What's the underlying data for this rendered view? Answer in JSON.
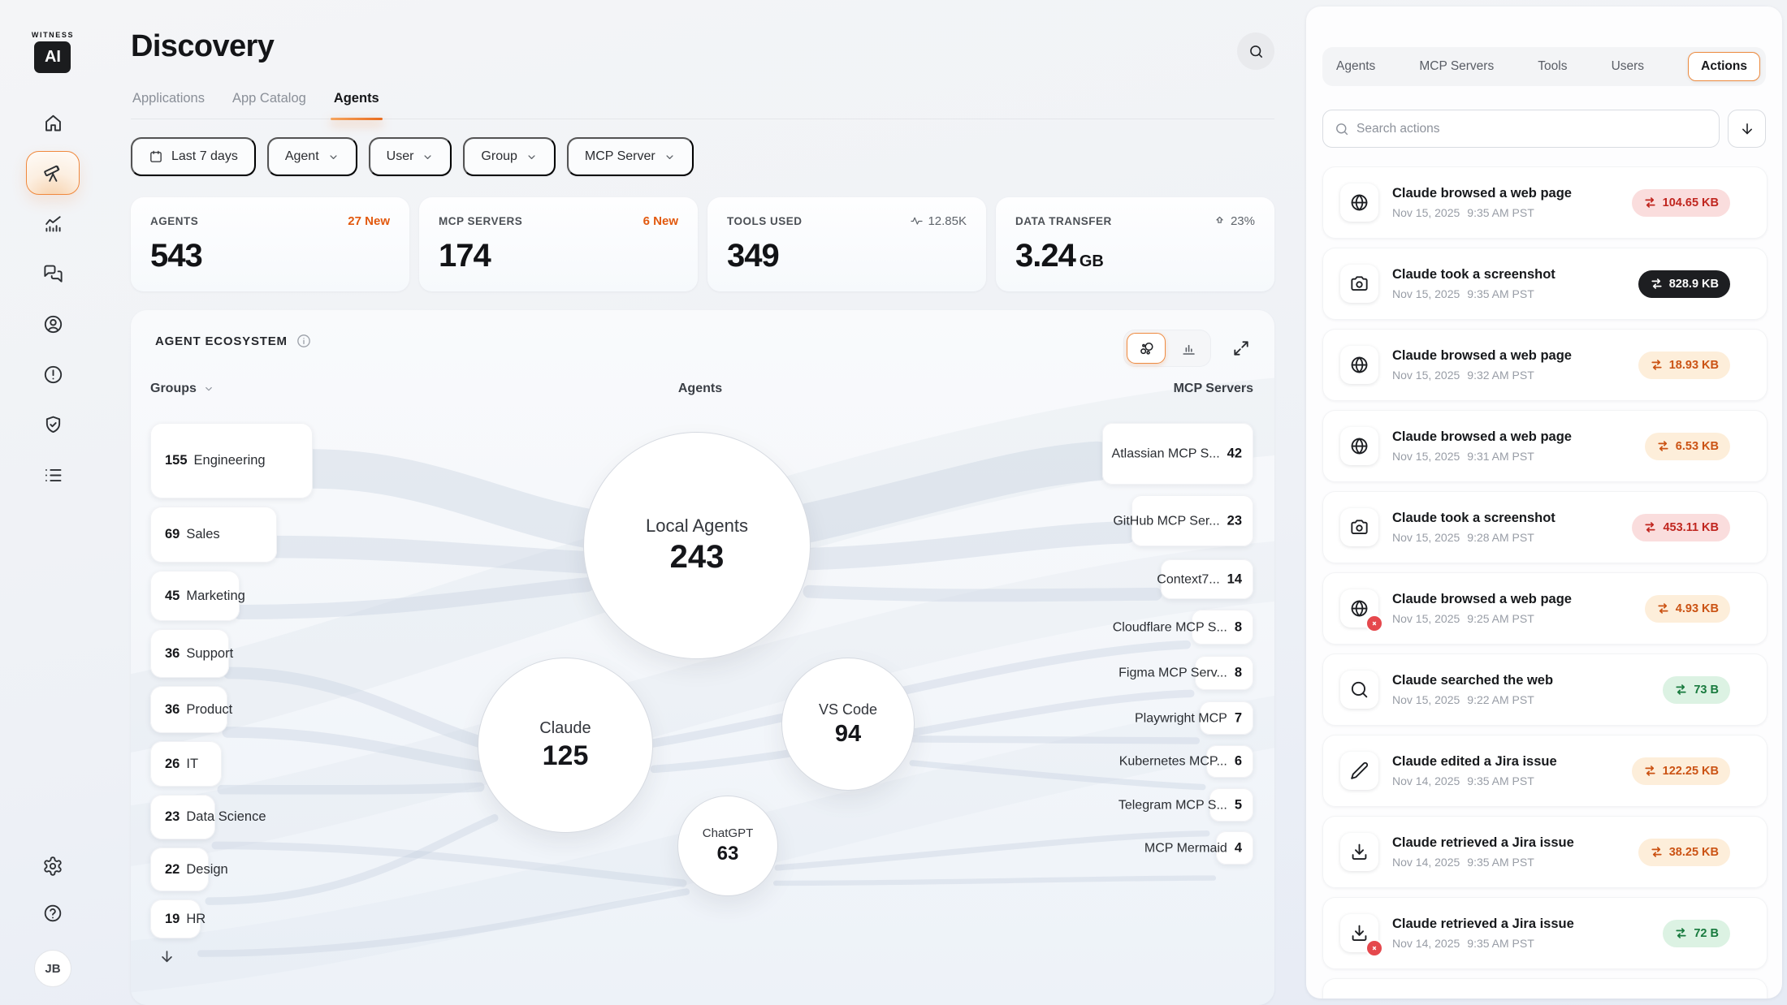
{
  "sidebar": {
    "logo": {
      "word": "WITNESS",
      "mark": "AI"
    },
    "nav": [
      {
        "name": "home",
        "icon": "home-icon",
        "active": false
      },
      {
        "name": "discovery",
        "icon": "telescope-icon",
        "active": true
      },
      {
        "name": "analytics",
        "icon": "chart-trend-icon",
        "active": false
      },
      {
        "name": "conversations",
        "icon": "chat-bubbles-icon",
        "active": false
      },
      {
        "name": "users",
        "icon": "user-circle-icon",
        "active": false
      },
      {
        "name": "alerts",
        "icon": "alert-circle-icon",
        "active": false
      },
      {
        "name": "security",
        "icon": "shield-check-icon",
        "active": false
      },
      {
        "name": "logs",
        "icon": "list-icon",
        "active": false
      }
    ],
    "footer": [
      {
        "name": "settings",
        "icon": "gear-icon"
      },
      {
        "name": "help",
        "icon": "help-circle-icon"
      }
    ],
    "avatar": "JB"
  },
  "header": {
    "title": "Discovery",
    "tabs": [
      {
        "label": "Applications",
        "active": false
      },
      {
        "label": "App Catalog",
        "active": false
      },
      {
        "label": "Agents",
        "active": true
      }
    ]
  },
  "filters": {
    "date_range": "Last 7 days",
    "dropdowns": [
      "Agent",
      "User",
      "Group",
      "MCP Server"
    ]
  },
  "stats": [
    {
      "label": "AGENTS",
      "value": "543",
      "meta": "27 New",
      "meta_style": "orange",
      "meta_icon": ""
    },
    {
      "label": "MCP SERVERS",
      "value": "174",
      "meta": "6 New",
      "meta_style": "orange",
      "meta_icon": ""
    },
    {
      "label": "TOOLS USED",
      "value": "349",
      "meta": "12.85K",
      "meta_style": "gray",
      "meta_icon": "pulse"
    },
    {
      "label": "DATA TRANSFER",
      "value": "3.24",
      "unit": "GB",
      "meta": "23%",
      "meta_style": "gray",
      "meta_icon": "arrow-up"
    }
  ],
  "ecosystem": {
    "title": "AGENT ECOSYSTEM",
    "columns": {
      "left": "Groups",
      "center": "Agents",
      "right": "MCP Servers"
    },
    "groups": [
      {
        "count": "155",
        "label": "Engineering"
      },
      {
        "count": "69",
        "label": "Sales"
      },
      {
        "count": "45",
        "label": "Marketing"
      },
      {
        "count": "36",
        "label": "Support"
      },
      {
        "count": "36",
        "label": "Product"
      },
      {
        "count": "26",
        "label": "IT"
      },
      {
        "count": "23",
        "label": "Data Science"
      },
      {
        "count": "22",
        "label": "Design"
      },
      {
        "count": "19",
        "label": "HR"
      }
    ],
    "agents": [
      {
        "label": "Local Agents",
        "value": "243"
      },
      {
        "label": "Claude",
        "value": "125"
      },
      {
        "label": "VS Code",
        "value": "94"
      },
      {
        "label": "ChatGPT",
        "value": "63"
      }
    ],
    "mcp_servers": [
      {
        "label": "Atlassian MCP S...",
        "value": "42"
      },
      {
        "label": "GitHub MCP Ser...",
        "value": "23"
      },
      {
        "label": "Context7...",
        "value": "14"
      },
      {
        "label": "Cloudflare MCP S...",
        "value": "8"
      },
      {
        "label": "Figma MCP Serv...",
        "value": "8"
      },
      {
        "label": "Playwright MCP",
        "value": "7"
      },
      {
        "label": "Kubernetes MCP...",
        "value": "6"
      },
      {
        "label": "Telegram MCP S...",
        "value": "5"
      },
      {
        "label": "MCP Mermaid",
        "value": "4"
      }
    ],
    "colors": {
      "ribbon": "#c9d3e2",
      "accent": "#ee8a40"
    }
  },
  "panel": {
    "tabs": [
      {
        "label": "Agents",
        "active": false
      },
      {
        "label": "MCP Servers",
        "active": false
      },
      {
        "label": "Tools",
        "active": false
      },
      {
        "label": "Users",
        "active": false
      },
      {
        "label": "Actions",
        "active": true
      }
    ],
    "search": {
      "placeholder": "Search actions"
    },
    "actions": [
      {
        "icon": "globe",
        "title": "Claude browsed a web page",
        "date": "Nov 15, 2025",
        "time": "9:35 AM PST",
        "badge": "104.65 KB",
        "variant": "red",
        "error": false
      },
      {
        "icon": "camera",
        "title": "Claude took a screenshot",
        "date": "Nov 15, 2025",
        "time": "9:35 AM PST",
        "badge": "828.9 KB",
        "variant": "dark",
        "error": false
      },
      {
        "icon": "globe",
        "title": "Claude browsed a web page",
        "date": "Nov 15, 2025",
        "time": "9:32 AM PST",
        "badge": "18.93 KB",
        "variant": "orange",
        "error": false
      },
      {
        "icon": "globe",
        "title": "Claude browsed a web page",
        "date": "Nov 15, 2025",
        "time": "9:31 AM PST",
        "badge": "6.53 KB",
        "variant": "orange",
        "error": false
      },
      {
        "icon": "camera",
        "title": "Claude took a screenshot",
        "date": "Nov 15, 2025",
        "time": "9:28 AM PST",
        "badge": "453.11 KB",
        "variant": "red",
        "error": false
      },
      {
        "icon": "globe",
        "title": "Claude browsed a web page",
        "date": "Nov 15, 2025",
        "time": "9:25 AM PST",
        "badge": "4.93 KB",
        "variant": "orange",
        "error": true
      },
      {
        "icon": "search",
        "title": "Claude searched the web",
        "date": "Nov 15, 2025",
        "time": "9:22 AM PST",
        "badge": "73 B",
        "variant": "green",
        "error": false
      },
      {
        "icon": "pencil",
        "title": "Claude edited a Jira issue",
        "date": "Nov 14, 2025",
        "time": "9:35 AM PST",
        "badge": "122.25 KB",
        "variant": "orange",
        "error": false
      },
      {
        "icon": "download",
        "title": "Claude retrieved a Jira issue",
        "date": "Nov 14, 2025",
        "time": "9:35 AM PST",
        "badge": "38.25 KB",
        "variant": "orange",
        "error": false
      },
      {
        "icon": "download",
        "title": "Claude retrieved a Jira issue",
        "date": "Nov 14, 2025",
        "time": "9:35 AM PST",
        "badge": "72 B",
        "variant": "green",
        "error": true
      }
    ]
  }
}
